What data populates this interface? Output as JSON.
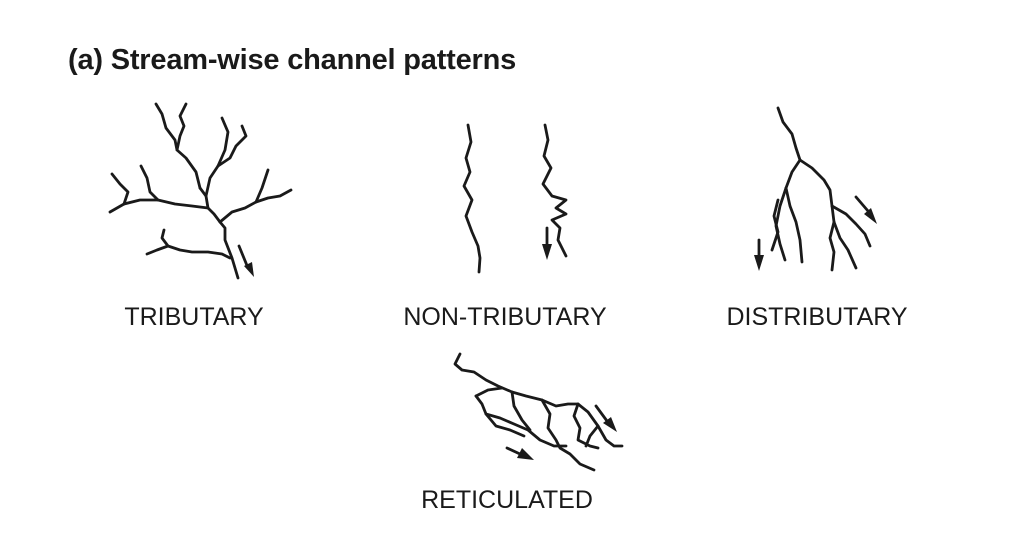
{
  "title": "(a) Stream-wise channel patterns",
  "patterns": {
    "tributary": "TRIBUTARY",
    "non_tributary": "NON-TRIBUTARY",
    "distributary": "DISTRIBUTARY",
    "reticulated": "RETICULATED"
  }
}
